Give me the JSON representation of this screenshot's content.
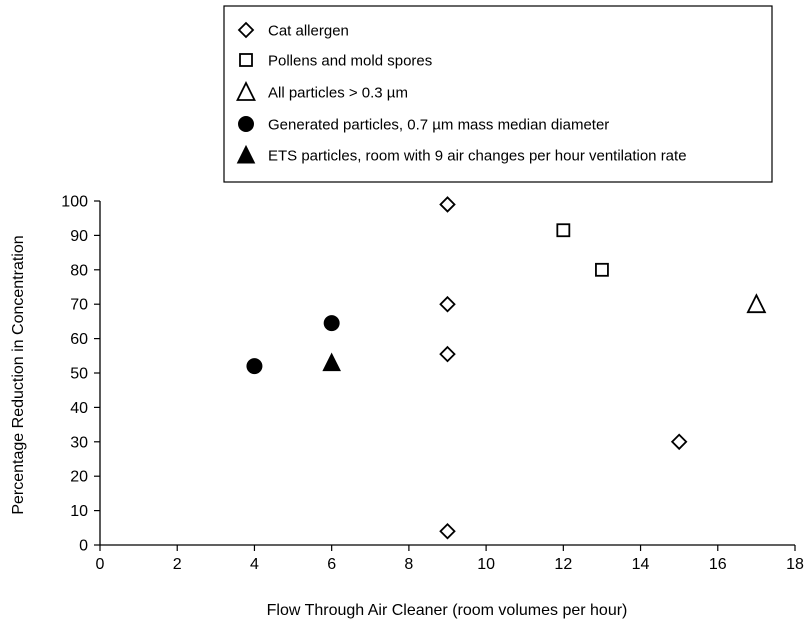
{
  "chart_data": {
    "type": "scatter",
    "xlabel": "Flow Through Air Cleaner (room volumes per hour)",
    "ylabel": "Percentage Reduction in Concentration",
    "xlim": [
      0,
      18
    ],
    "ylim": [
      0,
      100
    ],
    "xticks": [
      "0",
      "2",
      "4",
      "6",
      "8",
      "10",
      "12",
      "14",
      "16",
      "18"
    ],
    "yticks": [
      "0",
      "10",
      "20",
      "30",
      "40",
      "50",
      "60",
      "70",
      "80",
      "90",
      "100"
    ],
    "grid": false,
    "legend_position": "top",
    "series": [
      {
        "name": "Cat allergen",
        "marker": "diamond-open",
        "points": [
          [
            9,
            99
          ],
          [
            9,
            70
          ],
          [
            9,
            55.5
          ],
          [
            9,
            4
          ],
          [
            15,
            30
          ]
        ]
      },
      {
        "name": "Pollens and mold spores",
        "marker": "square-open",
        "points": [
          [
            12,
            91.5
          ],
          [
            13,
            80
          ]
        ]
      },
      {
        "name": "All particles > 0.3 µm",
        "marker": "triangle-open",
        "points": [
          [
            17,
            70
          ]
        ]
      },
      {
        "name": "Generated particles, 0.7 µm mass median diameter",
        "marker": "circle-filled",
        "points": [
          [
            4,
            52
          ],
          [
            6,
            64.5
          ]
        ]
      },
      {
        "name": "ETS particles, room with 9 air changes per hour ventilation rate",
        "marker": "triangle-filled",
        "points": [
          [
            6,
            53
          ]
        ]
      }
    ]
  }
}
